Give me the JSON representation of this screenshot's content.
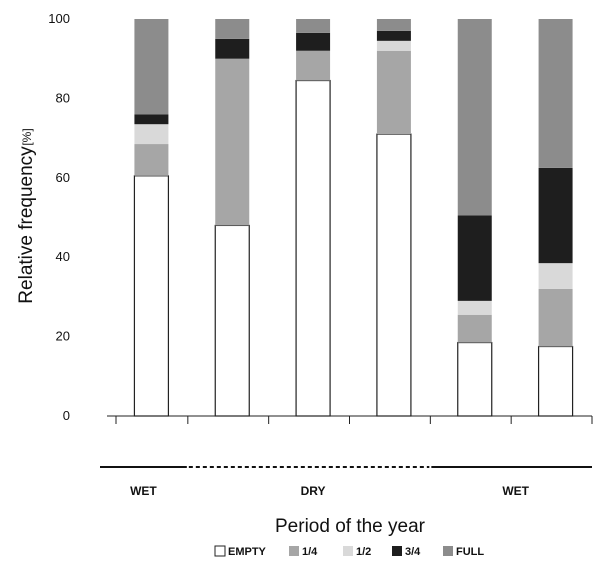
{
  "chart_data": {
    "type": "bar",
    "stacked": true,
    "ylabel": "Relative frequency",
    "ylabel_unit": "[%]",
    "xlabel": "Period of the year",
    "ylim": [
      0,
      100
    ],
    "yticks": [
      0,
      20,
      40,
      60,
      80,
      100
    ],
    "grid": false,
    "legend_position": "bottom",
    "categories": [
      "",
      "",
      "",
      "",
      "",
      ""
    ],
    "periods": [
      {
        "label": "WET",
        "line": "solid",
        "from": 0,
        "to": 1
      },
      {
        "label": "DRY",
        "line": "dashed",
        "from": 1,
        "to": 4
      },
      {
        "label": "WET",
        "line": "solid",
        "from": 4,
        "to": 6
      }
    ],
    "series": [
      {
        "name": "EMPTY",
        "color": "#ffffff",
        "values": [
          60.5,
          48,
          84.5,
          71,
          18.5,
          17.5
        ]
      },
      {
        "name": "1/4",
        "color": "#a6a6a6",
        "values": [
          8,
          42,
          7.5,
          21,
          7,
          14.5
        ]
      },
      {
        "name": "1/2",
        "color": "#d9d9d9",
        "values": [
          5,
          0,
          0,
          2.5,
          3.5,
          6.5
        ]
      },
      {
        "name": "3/4",
        "color": "#1e1e1e",
        "values": [
          2.5,
          5,
          4.5,
          2.5,
          21.5,
          24
        ]
      },
      {
        "name": "FULL",
        "color": "#8c8c8c",
        "values": [
          24,
          5,
          3.5,
          3,
          49.5,
          37.5
        ]
      }
    ]
  }
}
